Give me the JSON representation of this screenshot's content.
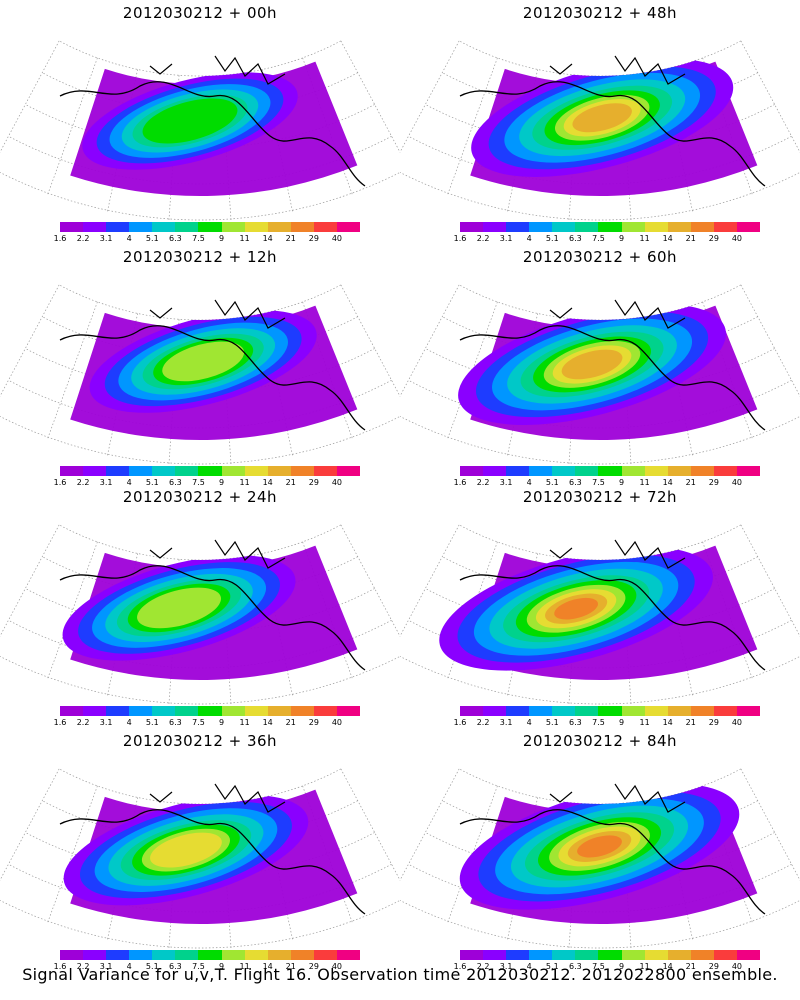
{
  "panels": [
    {
      "title": "2012030212 + 00h"
    },
    {
      "title": "2012030212 + 48h"
    },
    {
      "title": "2012030212 + 12h"
    },
    {
      "title": "2012030212 + 60h"
    },
    {
      "title": "2012030212 + 24h"
    },
    {
      "title": "2012030212 + 72h"
    },
    {
      "title": "2012030212 + 36h"
    },
    {
      "title": "2012030212 + 84h"
    }
  ],
  "colorbar": {
    "labels": [
      "1.6",
      "2.2",
      "3.1",
      "4",
      "5.1",
      "6.3",
      "7.5",
      "9",
      "11",
      "14",
      "21",
      "29",
      "40"
    ],
    "colors": [
      "#9e00d8",
      "#8a00ff",
      "#1e3cff",
      "#0096ff",
      "#00c8c8",
      "#00d28c",
      "#00dc00",
      "#a0e632",
      "#e6dc32",
      "#e6af2d",
      "#f08228",
      "#fa3c3c",
      "#f00082"
    ]
  },
  "footer": "Signal Variance for u,v,T. Flight 16. Observation time 2012030212. 2012022800 ensemble."
}
